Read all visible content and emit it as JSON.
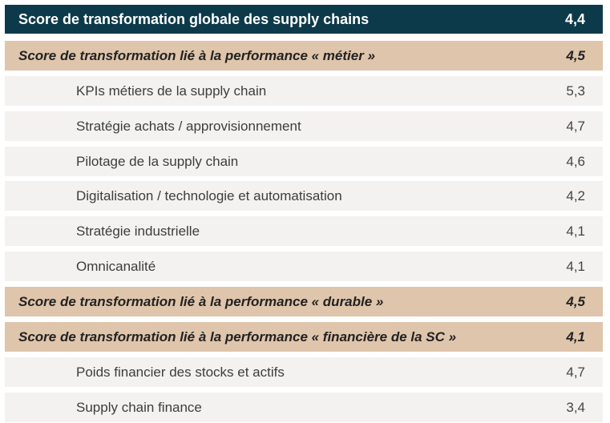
{
  "header": {
    "label": "Score de transformation globale des supply chains",
    "value": "4,4"
  },
  "rows": [
    {
      "type": "section",
      "label": "Score de transformation lié à la performance « métier »",
      "value": "4,5"
    },
    {
      "type": "item",
      "label": "KPIs métiers de la supply chain",
      "value": "5,3"
    },
    {
      "type": "item",
      "label": "Stratégie achats / approvisionnement",
      "value": "4,7"
    },
    {
      "type": "item",
      "label": "Pilotage de la supply chain",
      "value": "4,6"
    },
    {
      "type": "item",
      "label": "Digitalisation / technologie et automatisation",
      "value": "4,2"
    },
    {
      "type": "item",
      "label": "Stratégie industrielle",
      "value": "4,1"
    },
    {
      "type": "item",
      "label": "Omnicanalité",
      "value": "4,1"
    },
    {
      "type": "section",
      "label": "Score de transformation lié à la performance « durable »",
      "value": "4,5"
    },
    {
      "type": "section",
      "label": "Score de transformation lié à la performance « financière de la SC »",
      "value": "4,1"
    },
    {
      "type": "item",
      "label": "Poids financier des stocks et actifs",
      "value": "4,7"
    },
    {
      "type": "item",
      "label": "Supply chain finance",
      "value": "3,4"
    }
  ]
}
